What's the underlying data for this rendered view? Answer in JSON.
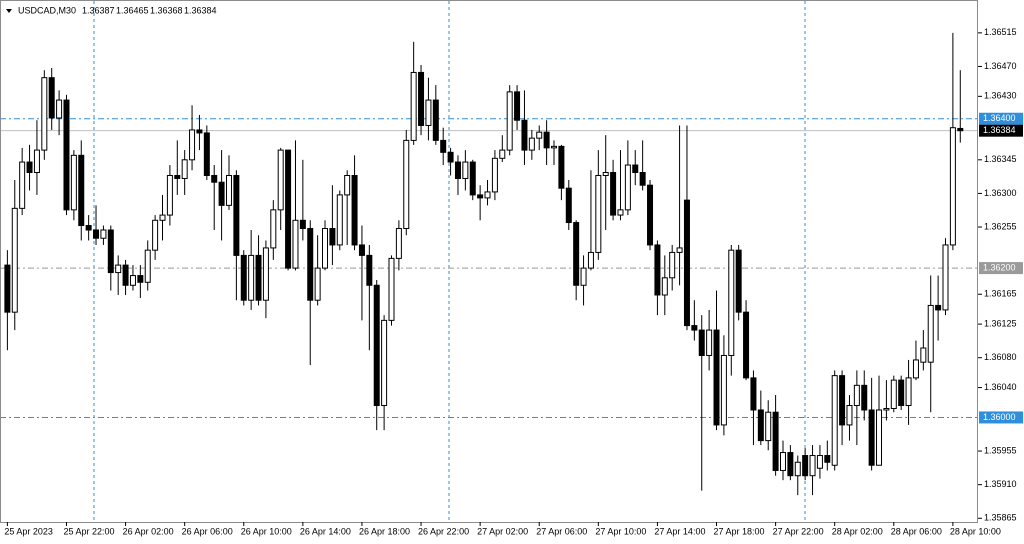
{
  "chart_data": {
    "type": "candlestick",
    "title": "USDCAD,M30",
    "up_color": "#ffffff",
    "down_color": "#000000",
    "outline_color": "#000000",
    "xlim": [
      -1,
      131.4
    ],
    "ylim": [
      1.3586,
      1.36559
    ],
    "xticks": [
      {
        "value": 0,
        "label": "25 Apr 2023"
      },
      {
        "value": 8,
        "label": "25 Apr 22:00"
      },
      {
        "value": 16,
        "label": "26 Apr 02:00"
      },
      {
        "value": 24,
        "label": "26 Apr 06:00"
      },
      {
        "value": 32,
        "label": "26 Apr 10:00"
      },
      {
        "value": 40,
        "label": "26 Apr 14:00"
      },
      {
        "value": 48,
        "label": "26 Apr 18:00"
      },
      {
        "value": 56,
        "label": "26 Apr 22:00"
      },
      {
        "value": 64,
        "label": "27 Apr 02:00"
      },
      {
        "value": 72,
        "label": "27 Apr 06:00"
      },
      {
        "value": 80,
        "label": "27 Apr 10:00"
      },
      {
        "value": 88,
        "label": "27 Apr 14:00"
      },
      {
        "value": 96,
        "label": "27 Apr 18:00"
      },
      {
        "value": 104,
        "label": "27 Apr 22:00"
      },
      {
        "value": 112,
        "label": "28 Apr 02:00"
      },
      {
        "value": 120,
        "label": "28 Apr 06:00"
      },
      {
        "value": 128,
        "label": "28 Apr 10:00"
      }
    ],
    "yticks": [
      1.36515,
      {
        "value": 1.3647,
        "label": "1.36470"
      },
      {
        "value": 1.3643,
        "label": "1.36430"
      },
      1.36345,
      {
        "value": 1.363,
        "label": "1.36300"
      },
      1.36255,
      1.36165,
      1.36125,
      {
        "value": 1.3608,
        "label": "1.36080"
      },
      {
        "value": 1.3604,
        "label": "1.36040"
      },
      1.35955,
      {
        "value": 1.3591,
        "label": "1.35910"
      },
      1.35865
    ],
    "levels": [
      {
        "value": 1.364,
        "label": "1.36400",
        "color": "#2f8fdc",
        "style": "dashdot"
      },
      {
        "value": 1.362,
        "label": "1.36200",
        "color": "#9a9a9a",
        "style": "dashdot"
      },
      {
        "value": 1.36,
        "label": "1.36000",
        "color": "#2f8fdc",
        "style": "dashdot"
      }
    ],
    "bid_line": true,
    "bid_line_color": "#c0c0c0",
    "open": [
      1.36204,
      1.36141,
      1.3628,
      1.36342,
      1.36328,
      1.36358,
      1.36455,
      1.36401,
      1.36425,
      1.36278,
      1.36351,
      1.36257,
      1.36251,
      1.3624,
      1.36251,
      1.36194,
      1.36204,
      1.36177,
      1.3619,
      1.36181,
      1.36224,
      1.36264,
      1.36271,
      1.36324,
      1.3632,
      1.36345,
      1.36385,
      1.36381,
      1.36324,
      1.36315,
      1.36284,
      1.36324,
      1.36217,
      1.36157,
      1.36217,
      1.36157,
      1.36227,
      1.36278,
      1.36358,
      1.362,
      1.36264,
      1.36253,
      1.36157,
      1.362,
      1.36253,
      1.36231,
      1.36298,
      1.36324,
      1.36231,
      1.36217,
      1.36177,
      1.36016,
      1.3613,
      1.36213,
      1.36253,
      1.36371,
      1.36462,
      1.36391,
      1.36425,
      1.36371,
      1.36355,
      1.36342,
      1.3632,
      1.36342,
      1.36298,
      1.36294,
      1.36302,
      1.36347,
      1.36358,
      1.36436,
      1.36398,
      1.36358,
      1.36374,
      1.36382,
      1.36361,
      1.36363,
      1.36307,
      1.36261,
      1.36177,
      1.362,
      1.36221,
      1.36324,
      1.36328,
      1.36271,
      1.36278,
      1.36338,
      1.36328,
      1.36311,
      1.36231,
      1.36164,
      1.36187,
      1.36221,
      1.36291,
      1.36123,
      1.36117,
      1.36083,
      1.36117,
      1.3599,
      1.36083,
      1.36224,
      1.36141,
      1.36053,
      1.3601,
      1.35969,
      1.36007,
      1.35929,
      1.35953,
      1.35922,
      1.35949,
      1.35922,
      1.35932,
      1.35949,
      1.35936,
      1.36056,
      1.3599,
      1.36016,
      1.36043,
      1.3601,
      1.35936,
      1.3601,
      1.36012,
      1.3605,
      1.36016,
      1.36053,
      1.36074,
      1.36074,
      1.3615,
      1.36144,
      1.36231,
      1.36387
    ],
    "high": [
      1.36224,
      1.36318,
      1.36361,
      1.36365,
      1.36398,
      1.36465,
      1.36468,
      1.36438,
      1.36432,
      1.36358,
      1.36371,
      1.36271,
      1.36284,
      1.36257,
      1.36257,
      1.36217,
      1.36211,
      1.36204,
      1.36204,
      1.36237,
      1.36271,
      1.36298,
      1.36338,
      1.36371,
      1.36358,
      1.36418,
      1.36405,
      1.36391,
      1.36338,
      1.36358,
      1.36351,
      1.36331,
      1.36224,
      1.36251,
      1.36244,
      1.36237,
      1.36291,
      1.36361,
      1.36358,
      1.36371,
      1.36345,
      1.36264,
      1.36244,
      1.36264,
      1.36311,
      1.36304,
      1.36331,
      1.36351,
      1.36257,
      1.36231,
      1.36184,
      1.36137,
      1.36217,
      1.36264,
      1.36385,
      1.36503,
      1.36472,
      1.36455,
      1.36445,
      1.36388,
      1.36361,
      1.36351,
      1.36358,
      1.36345,
      1.36311,
      1.36318,
      1.36358,
      1.36378,
      1.36445,
      1.36445,
      1.36438,
      1.36385,
      1.36391,
      1.36398,
      1.36371,
      1.36365,
      1.36318,
      1.36264,
      1.36217,
      1.36331,
      1.36358,
      1.36378,
      1.36345,
      1.36358,
      1.36371,
      1.36358,
      1.36371,
      1.36318,
      1.36237,
      1.36217,
      1.36231,
      1.36391,
      1.36391,
      1.36157,
      1.36137,
      1.36144,
      1.3617,
      1.3611,
      1.36231,
      1.36231,
      1.36157,
      1.36063,
      1.36036,
      1.36023,
      1.3603,
      1.35969,
      1.35963,
      1.35949,
      1.35959,
      1.35963,
      1.35963,
      1.35969,
      1.36063,
      1.36063,
      1.3603,
      1.36063,
      1.36063,
      1.36053,
      1.36056,
      1.3605,
      1.36056,
      1.36056,
      1.36077,
      1.36103,
      1.36117,
      1.3619,
      1.3619,
      1.3624,
      1.36515,
      1.36465
    ],
    "low": [
      1.3609,
      1.36117,
      1.36271,
      1.36304,
      1.36298,
      1.36345,
      1.36385,
      1.36378,
      1.36271,
      1.36264,
      1.36237,
      1.36237,
      1.36231,
      1.36231,
      1.3617,
      1.36164,
      1.36164,
      1.3617,
      1.3616,
      1.3617,
      1.36211,
      1.36237,
      1.36257,
      1.36298,
      1.36298,
      1.36331,
      1.36358,
      1.36318,
      1.36251,
      1.36237,
      1.36278,
      1.36157,
      1.3615,
      1.36144,
      1.3615,
      1.36133,
      1.36211,
      1.36251,
      1.36197,
      1.36197,
      1.36237,
      1.3607,
      1.3615,
      1.36197,
      1.36204,
      1.36224,
      1.36231,
      1.36224,
      1.3613,
      1.3609,
      1.35983,
      1.35983,
      1.36123,
      1.36197,
      1.36244,
      1.36365,
      1.36378,
      1.36371,
      1.36365,
      1.36338,
      1.36324,
      1.36298,
      1.36304,
      1.36291,
      1.36264,
      1.36284,
      1.36291,
      1.36342,
      1.36351,
      1.36385,
      1.36338,
      1.36345,
      1.36358,
      1.36338,
      1.36338,
      1.36291,
      1.36251,
      1.36157,
      1.3615,
      1.36197,
      1.36211,
      1.36251,
      1.36264,
      1.36264,
      1.36271,
      1.36311,
      1.36304,
      1.36224,
      1.36137,
      1.36137,
      1.3617,
      1.36177,
      1.36117,
      1.36103,
      1.35902,
      1.36063,
      1.35983,
      1.35976,
      1.36056,
      1.3613,
      1.3605,
      1.35963,
      1.35963,
      1.35956,
      1.35922,
      1.35916,
      1.35916,
      1.35896,
      1.35916,
      1.35896,
      1.35918,
      1.35929,
      1.35929,
      1.35963,
      1.35969,
      1.35963,
      1.35996,
      1.35929,
      1.35936,
      1.35996,
      1.36007,
      1.3601,
      1.3599,
      1.3605,
      1.36063,
      1.36007,
      1.36103,
      1.36137,
      1.36224,
      1.36368
    ],
    "close": [
      1.36141,
      1.3628,
      1.36342,
      1.36328,
      1.36358,
      1.36455,
      1.36401,
      1.36425,
      1.36278,
      1.36351,
      1.36257,
      1.36251,
      1.3624,
      1.36251,
      1.36194,
      1.36204,
      1.36177,
      1.3619,
      1.36181,
      1.36224,
      1.36264,
      1.36271,
      1.36324,
      1.3632,
      1.36345,
      1.36385,
      1.36381,
      1.36324,
      1.36315,
      1.36284,
      1.36324,
      1.36217,
      1.36157,
      1.36217,
      1.36157,
      1.36227,
      1.36278,
      1.36358,
      1.362,
      1.36264,
      1.36253,
      1.36157,
      1.362,
      1.36253,
      1.36231,
      1.36298,
      1.36324,
      1.36231,
      1.36217,
      1.36177,
      1.36016,
      1.3613,
      1.36213,
      1.36253,
      1.36371,
      1.36462,
      1.36391,
      1.36425,
      1.36371,
      1.36355,
      1.36342,
      1.3632,
      1.36342,
      1.36298,
      1.36294,
      1.36302,
      1.36347,
      1.36358,
      1.36436,
      1.36398,
      1.36358,
      1.36374,
      1.36382,
      1.36361,
      1.36363,
      1.36307,
      1.36261,
      1.36177,
      1.362,
      1.36221,
      1.36324,
      1.36328,
      1.36271,
      1.36278,
      1.36338,
      1.36328,
      1.36311,
      1.36231,
      1.36164,
      1.36187,
      1.36221,
      1.36227,
      1.36123,
      1.36117,
      1.36083,
      1.36117,
      1.3599,
      1.36083,
      1.36224,
      1.36141,
      1.36053,
      1.3601,
      1.35969,
      1.36007,
      1.35929,
      1.35953,
      1.35922,
      1.3594,
      1.35922,
      1.35949,
      1.35949,
      1.3594,
      1.36056,
      1.3599,
      1.36016,
      1.36043,
      1.3601,
      1.35936,
      1.3601,
      1.36012,
      1.3605,
      1.36016,
      1.36053,
      1.36077,
      1.36093,
      1.3615,
      1.36144,
      1.36231,
      1.36388,
      1.36384
    ]
  }
}
